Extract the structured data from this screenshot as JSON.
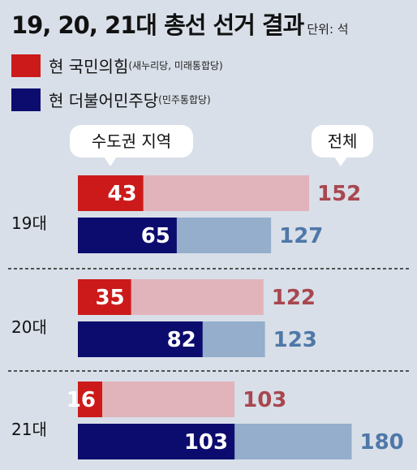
{
  "header": {
    "title": "19, 20, 21대 총선 선거 결과",
    "unit": "단위: 석"
  },
  "legend": [
    {
      "main": "현 국민의힘",
      "sub": "(새누리당, 미래통합당)",
      "color": "#cc1a1a"
    },
    {
      "main": "현 더불어민주당",
      "sub": "(민주통합당)",
      "color": "#0c0c6e"
    }
  ],
  "callouts": {
    "region": "수도권 지역",
    "total": "전체"
  },
  "chart_data": {
    "type": "bar",
    "categories": [
      "19대",
      "20대",
      "21대"
    ],
    "series": [
      {
        "name": "현 국민의힘",
        "region": [
          43,
          35,
          16
        ],
        "total": [
          152,
          122,
          103
        ],
        "color": "#cc1a1a",
        "total_color": "#e1b4bb",
        "label_color": "#a84750"
      },
      {
        "name": "현 더불어민주당",
        "region": [
          65,
          82,
          103
        ],
        "total": [
          127,
          123,
          180
        ],
        "color": "#0c0c6e",
        "total_color": "#94aecb",
        "label_color": "#4f78a8"
      }
    ]
  }
}
